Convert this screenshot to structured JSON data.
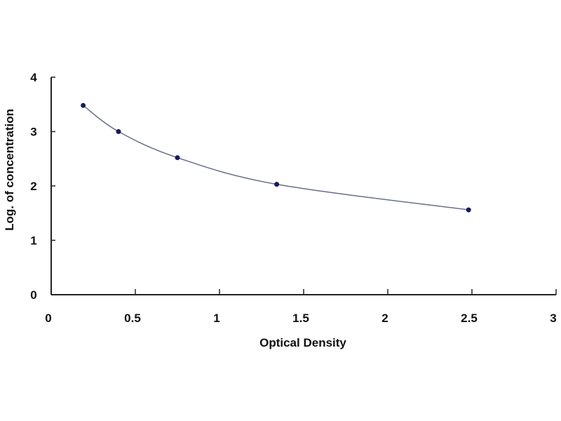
{
  "chart_data": {
    "type": "scatter",
    "title": "",
    "xlabel": "Optical Density",
    "ylabel": "Log. of concentration",
    "xlim": [
      0,
      3
    ],
    "ylim": [
      0,
      4
    ],
    "xticks": [
      "0",
      "0.5",
      "1",
      "1.5",
      "2",
      "2.5",
      "3"
    ],
    "yticks": [
      "0",
      "1",
      "2",
      "3",
      "4"
    ],
    "grid": false,
    "legend": "none",
    "fit_curve": "smooth",
    "colors": {
      "points": "#1a1a5e",
      "curve": "#6a6f8a",
      "axis": "#222222"
    },
    "series": [
      {
        "x": [
          0.19,
          0.4,
          0.75,
          1.34,
          2.48
        ],
        "y": [
          3.48,
          3.0,
          2.52,
          2.03,
          1.56
        ]
      }
    ]
  }
}
